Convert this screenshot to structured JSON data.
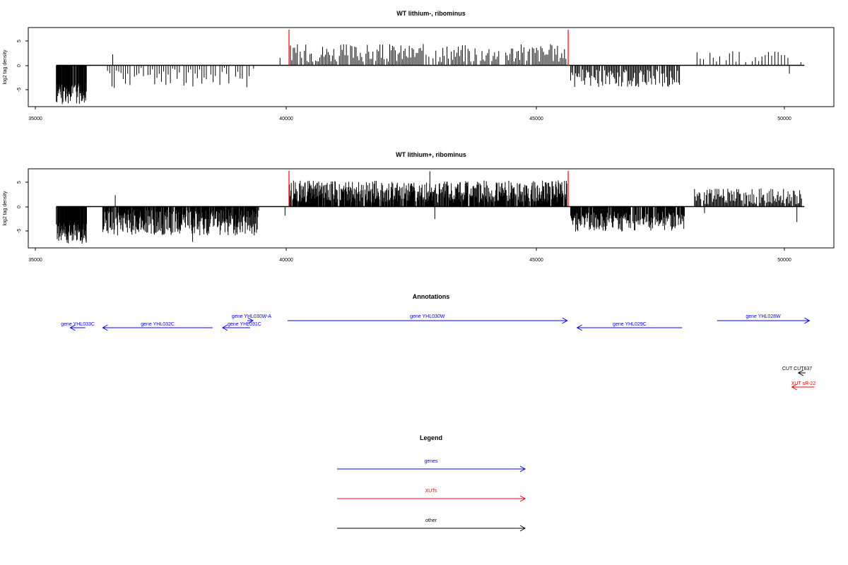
{
  "charts": [
    {
      "title": "WT lithium-, ribominus",
      "ylabel": "log2 tag density",
      "xticks": [
        "35000",
        "40000",
        "45000",
        "50000"
      ],
      "yticks": [
        "-5",
        "0",
        "5"
      ]
    },
    {
      "title": "WT lithium+, ribominus",
      "ylabel": "log2 tag density",
      "xticks": [
        "35000",
        "40000",
        "45000",
        "50000"
      ],
      "yticks": [
        "-5",
        "0",
        "5"
      ]
    }
  ],
  "annotations": {
    "title": "Annotations",
    "items": [
      {
        "label": "gene YHL033C",
        "type": "gene",
        "strand": "-",
        "start": 35700,
        "end": 36000,
        "lane": 1
      },
      {
        "label": "gene YHL032C",
        "type": "gene",
        "strand": "-",
        "start": 36350,
        "end": 38550,
        "lane": 1
      },
      {
        "label": "gene YHL030W-A",
        "type": "gene",
        "strand": "+",
        "start": 39300,
        "end": 39300,
        "lane": 0
      },
      {
        "label": "gene YHL031C",
        "type": "gene",
        "strand": "-",
        "start": 38750,
        "end": 39300,
        "lane": 1
      },
      {
        "label": "gene YHL030W",
        "type": "gene",
        "strand": "+",
        "start": 40050,
        "end": 45650,
        "lane": 0
      },
      {
        "label": "gene YHL029C",
        "type": "gene",
        "strand": "-",
        "start": 45850,
        "end": 47950,
        "lane": 1
      },
      {
        "label": "gene YHL028W",
        "type": "gene",
        "strand": "+",
        "start": 48650,
        "end": 50500,
        "lane": 0
      },
      {
        "label": "CUT CUT637",
        "type": "other",
        "strand": "-",
        "start": 50280,
        "end": 50420,
        "lane": 2
      },
      {
        "label": "XUT sR-22",
        "type": "XUT",
        "strand": "-",
        "start": 50150,
        "end": 50600,
        "lane": 3
      }
    ]
  },
  "legend": {
    "title": "Legend",
    "items": [
      {
        "label": "genes",
        "color": "#0000ff"
      },
      {
        "label": "XUTs",
        "color": "#ff0000"
      },
      {
        "label": "other",
        "color": "#000000"
      }
    ]
  },
  "colors": {
    "gene": "#0000ff",
    "XUT": "#ff0000",
    "other": "#000000",
    "marker": "#ff0000",
    "bar": "#000000"
  },
  "chart_data": [
    {
      "type": "bar",
      "title": "WT lithium-, ribominus",
      "xlabel": "",
      "ylabel": "log2 tag density",
      "xlim": [
        34900,
        50950
      ],
      "ylim": [
        -8.3,
        7.6
      ],
      "grid": false,
      "markers": [
        40080,
        45670
      ],
      "segments": [
        {
          "start": 35420,
          "end": 36030,
          "low": -7.8,
          "high": -3.5,
          "sign": -1,
          "step": 7
        },
        {
          "start": 36400,
          "end": 39380,
          "low": -4.6,
          "high": -0.5,
          "sign": -1,
          "step": 45
        },
        {
          "start": 40080,
          "end": 45650,
          "low": 0.6,
          "high": 4.3,
          "sign": 1,
          "step": 28
        },
        {
          "start": 45720,
          "end": 47900,
          "low": -4.4,
          "high": -0.8,
          "sign": -1,
          "step": 20
        },
        {
          "start": 48250,
          "end": 50350,
          "low": 0.5,
          "high": 2.9,
          "sign": 1,
          "step": 65
        }
      ],
      "extra_bars": [
        [
          36550,
          2.2
        ],
        [
          39900,
          1.5
        ],
        [
          49550,
          0.9
        ],
        [
          50100,
          -1.7
        ]
      ]
    },
    {
      "type": "bar",
      "title": "WT lithium+, ribominus",
      "xlabel": "",
      "ylabel": "log2 tag density",
      "xlim": [
        34900,
        50950
      ],
      "ylim": [
        -8.3,
        7.6
      ],
      "grid": false,
      "markers": [
        40080,
        45670
      ],
      "segments": [
        {
          "start": 35420,
          "end": 36030,
          "low": -7.6,
          "high": -3.0,
          "sign": -1,
          "step": 6
        },
        {
          "start": 36350,
          "end": 39480,
          "low": -5.8,
          "high": -0.6,
          "sign": -1,
          "step": 9
        },
        {
          "start": 40080,
          "end": 45650,
          "low": 0.8,
          "high": 5.3,
          "sign": 1,
          "step": 9
        },
        {
          "start": 45720,
          "end": 48000,
          "low": -5.0,
          "high": -1.0,
          "sign": -1,
          "step": 11
        },
        {
          "start": 48200,
          "end": 50350,
          "low": 0.5,
          "high": 3.8,
          "sign": 1,
          "step": 18
        }
      ],
      "extra_bars": [
        [
          36600,
          2.3
        ],
        [
          38150,
          -7.1
        ],
        [
          40000,
          -1.8
        ],
        [
          42900,
          7.1
        ],
        [
          43000,
          -2.5
        ],
        [
          48400,
          -1.3
        ],
        [
          50250,
          -3.1
        ]
      ]
    }
  ]
}
